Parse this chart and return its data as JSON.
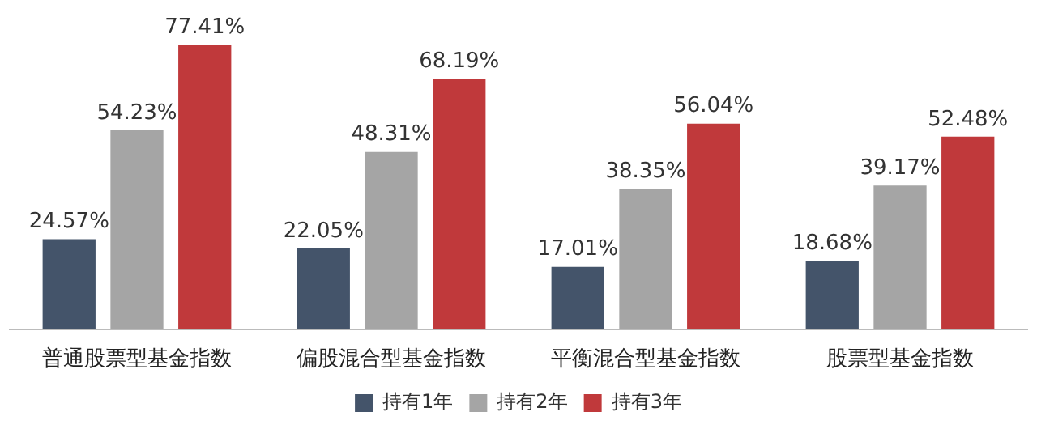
{
  "chart_data": {
    "type": "bar",
    "categories": [
      "普通股票型基金指数",
      "偏股混合型基金指数",
      "平衡混合型基金指数",
      "股票型基金指数"
    ],
    "series": [
      {
        "name": "持有1年",
        "color": "#44546a",
        "values": [
          24.57,
          22.05,
          17.01,
          18.68
        ],
        "value_labels": [
          "24.57%",
          "22.05%",
          "17.01%",
          "18.68%"
        ]
      },
      {
        "name": "持有2年",
        "color": "#a5a5a5",
        "values": [
          54.23,
          48.31,
          38.35,
          39.17
        ],
        "value_labels": [
          "54.23%",
          "48.31%",
          "38.35%",
          "39.17%"
        ]
      },
      {
        "name": "持有3年",
        "color": "#c0393b",
        "values": [
          77.41,
          68.19,
          56.04,
          52.48
        ],
        "value_labels": [
          "77.41%",
          "68.19%",
          "56.04%",
          "52.48%"
        ]
      }
    ],
    "legend": "bottom",
    "grid": false
  }
}
